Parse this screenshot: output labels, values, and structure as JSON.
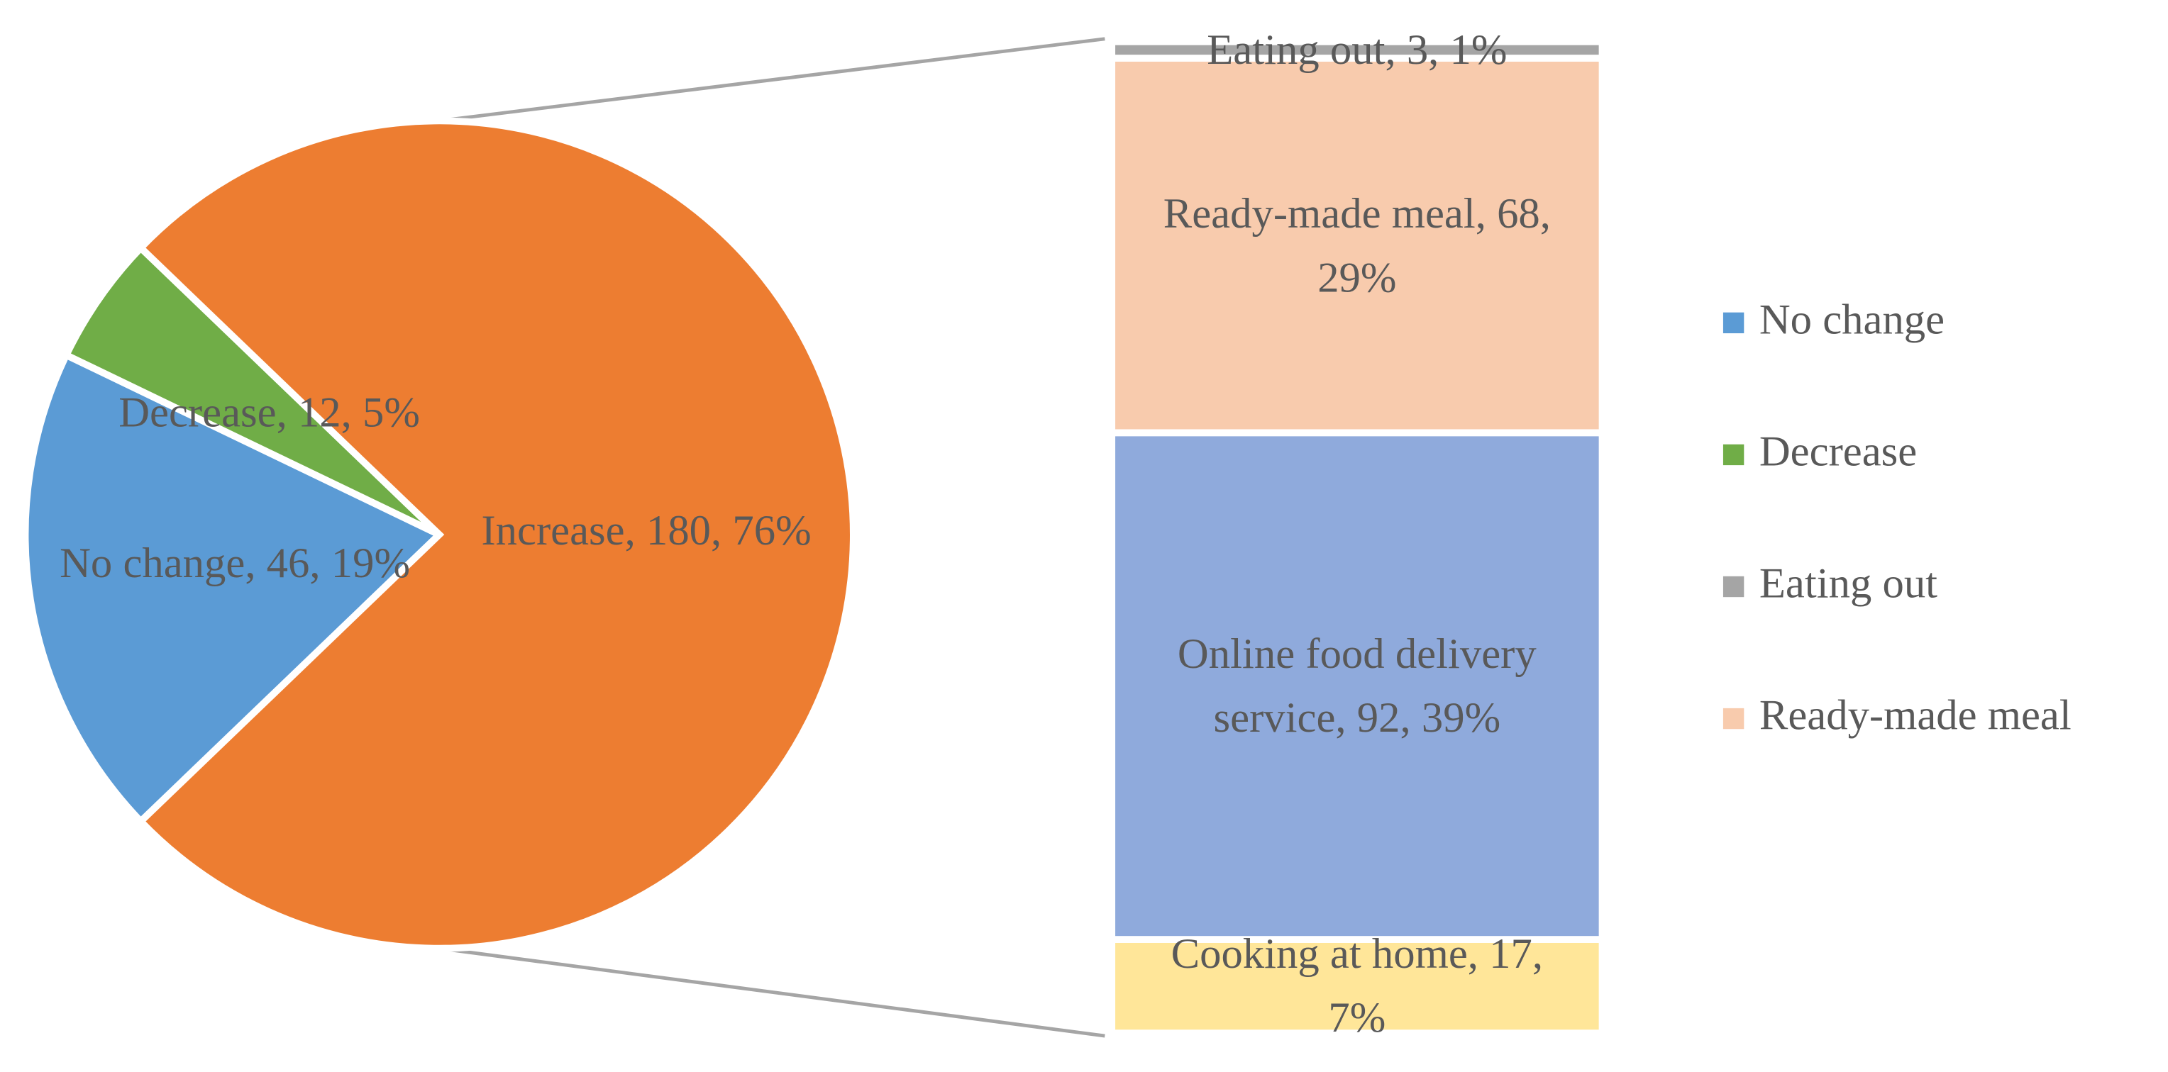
{
  "chart_data": {
    "type": "pie_of_bar",
    "pie": {
      "categories": [
        "No change",
        "Decrease",
        "Increase"
      ],
      "values": [
        46,
        12,
        180
      ],
      "value_labels": [
        "No change, 46, 19%",
        "Decrease, 12, 5%",
        "Increase, 180, 76%"
      ],
      "colors": [
        "#5b9bd5",
        "#70ad47",
        "#ed7d31"
      ]
    },
    "bar": {
      "categories": [
        "Cooking at home",
        "Online food delivery service",
        "Ready-made meal",
        "Eating out"
      ],
      "values": [
        17,
        92,
        68,
        3
      ],
      "value_labels": [
        "Cooking at home, 17, 7%",
        "Online food delivery service, 92, 39%",
        "Ready-made meal, 68, 29%",
        "Eating out, 3, 1%"
      ],
      "colors": [
        "#ffe699",
        "#8faadc",
        "#f8cbad",
        "#a5a5a5"
      ]
    },
    "legend": [
      {
        "name": "No change",
        "color": "#5b9bd5"
      },
      {
        "name": "Decrease",
        "color": "#70ad47"
      },
      {
        "name": "Eating out",
        "color": "#a5a5a5"
      },
      {
        "name": "Ready-made meal",
        "color": "#f8cbad"
      }
    ]
  }
}
